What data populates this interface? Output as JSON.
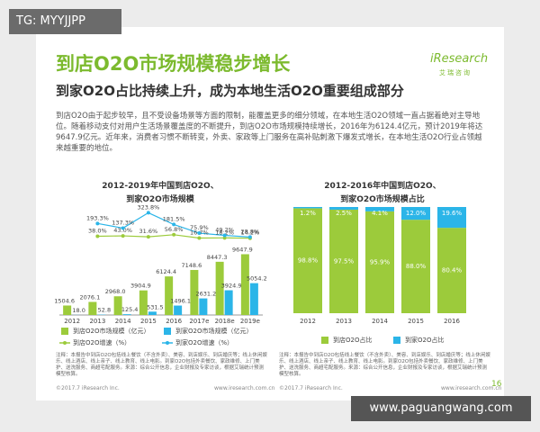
{
  "header": {
    "tag": "TG: MYYJJPP",
    "title": "到店O2O市场规模稳步增长",
    "subtitle": "到家O2O占比持续上升，成为本地生活O2O重要组成部分",
    "logo": "iResearch",
    "logo_sub": "艾瑞咨询",
    "paragraph": "到店O2O由于起步较早，且不受设备场景等方面的限制，能覆盖更多的细分领域，在本地生活O2O领域一直占据着绝对主导地位。随着移动支付对用户生活场景覆盖度的不断提升，到店O2O市场规模持续增长，2016年为6124.4亿元，预计2019年将达9647.9亿元。近年来，消费者习惯不断转变，外卖、家政等上门服务在高补贴刺激下爆发式增长，在本地生活O2O行业占领越来越重要的地位。"
  },
  "chart_data": [
    {
      "type": "bar",
      "title": "2012-2019年中国到店O2O、到家O2O市场规模",
      "categories": [
        "2012",
        "2013",
        "2014",
        "2015",
        "2016",
        "2017e",
        "2018e",
        "2019e"
      ],
      "ylim": [
        0,
        10000
      ],
      "y2lim": [
        0,
        350
      ],
      "series": [
        {
          "name": "到店O2O市场规模（亿元）",
          "color": "#9ccb3b",
          "values": [
            1504.6,
            2076.1,
            2968.0,
            3904.9,
            6124.4,
            7148.6,
            8447.3,
            9647.9
          ],
          "value_labels": [
            "1504.6",
            "2076.1",
            "2968.0",
            "3904.9",
            "6124.4",
            "7148.6",
            "8447.3",
            "9647.9"
          ]
        },
        {
          "name": "到家O2O市场规模（亿元）",
          "color": "#2bb5e8",
          "values": [
            18.0,
            52.8,
            125.4,
            531.5,
            1496.1,
            2631.2,
            3924.9,
            5054.2
          ],
          "value_labels": [
            "18.0",
            "52.8",
            "125.4",
            "531.5",
            "1496.1",
            "2631.2",
            "3924.9",
            "5054.2"
          ]
        },
        {
          "name": "到店O2O增速（%）",
          "type": "line",
          "axis": "y2",
          "color": "#9ccb3b",
          "values": [
            null,
            38.0,
            43.0,
            31.6,
            56.8,
            16.7,
            18.2,
            14.2
          ],
          "value_labels": [
            null,
            "38.0%",
            "43.0%",
            "31.6%",
            "56.8%",
            "16.7%",
            "18.2%",
            "14.2%"
          ]
        },
        {
          "name": "到家O2O增速（%）",
          "type": "line",
          "axis": "y2",
          "color": "#2bb5e8",
          "values": [
            null,
            193.3,
            137.3,
            323.8,
            181.5,
            75.9,
            49.2,
            28.8
          ],
          "value_labels": [
            null,
            "193.3%",
            "137.3%",
            "323.8%",
            "181.5%",
            "75.9%",
            "49.2%",
            "28.8%"
          ]
        }
      ]
    },
    {
      "type": "stacked_bar",
      "title": "2012-2016年中国到店O2O、到家O2O市场规模占比",
      "categories": [
        "2012",
        "2013",
        "2014",
        "2015",
        "2016"
      ],
      "ylim": [
        0,
        100
      ],
      "series": [
        {
          "name": "到店O2O占比",
          "color": "#9ccb3b",
          "values": [
            98.8,
            97.5,
            95.9,
            88.0,
            80.4
          ],
          "value_labels": [
            "98.8%",
            "97.5%",
            "95.9%",
            "88.0%",
            "80.4%"
          ]
        },
        {
          "name": "到家O2O占比",
          "color": "#2bb5e8",
          "values": [
            1.2,
            2.5,
            4.1,
            12.0,
            19.6
          ],
          "value_labels": [
            "1.2%",
            "2.5%",
            "4.1%",
            "12.0%",
            "19.6%"
          ]
        }
      ]
    }
  ],
  "footer": {
    "notes_left": "注释：本报告中到店O2O包括线上餐饮（不含外卖）、美容、到店娱乐、到店婚庆等；线上休闲娱乐、线上酒店、线上亲子、线上教育、线上电影。到家O2O包括外卖餐饮、家政维修、上门美护、送洗服务、商超宅配服务。来源：综合公开信息，企业财报及专家访谈，根据艾瑞统计预测模型核算。",
    "copyright_left": "©2017.7 iResearch Inc.",
    "url_left": "www.iresearch.com.cn",
    "notes_right": "注释：本报告中到店O2O包括线上餐饮（不含外卖）、美容、到店娱乐、到店婚庆等；线上休闲娱乐、线上酒店、线上亲子、线上教育、线上电影。到家O2O包括外卖餐饮、家政维修、上门美护、送洗服务、商超宅配服务。来源：综合公开信息，企业财报及专家访谈，根据艾瑞统计预测模型核算。",
    "copyright_right": "©2017.7 iResearch Inc.",
    "url_right": "www.iresearch.com.cn",
    "page": 16,
    "watermark": "www.paguangwang.com"
  }
}
